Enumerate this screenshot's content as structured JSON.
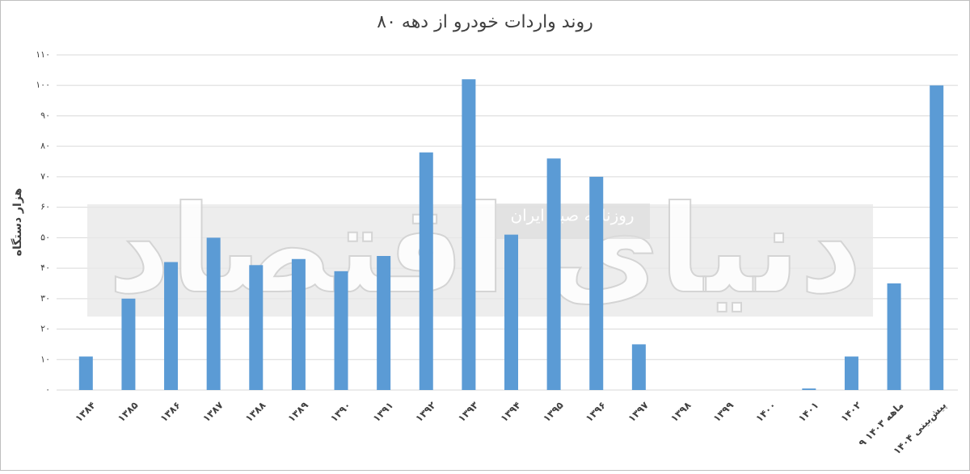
{
  "chart_data": {
    "type": "bar",
    "title": "روند واردات خودرو از دهه ۸۰",
    "y_label": "هزار دستگاه",
    "watermark": "دنیای اقتصاد",
    "watermark_subtitle": "روزنامه صبح ایران",
    "categories": [
      "۱۳۸۴",
      "۱۳۸۵",
      "۱۳۸۶",
      "۱۳۸۷",
      "۱۳۸۸",
      "۱۳۸۹",
      "۱۳۹۰",
      "۱۳۹۱",
      "۱۳۹۲",
      "۱۳۹۳",
      "۱۳۹۴",
      "۱۳۹۵",
      "۱۳۹۶",
      "۱۳۹۷",
      "۱۳۹۸",
      "۱۳۹۹",
      "۱۴۰۰",
      "۱۴۰۱",
      "۱۴۰۲",
      "۹ ماهه ۱۴۰۳",
      "پیش‌بینی ۱۴۰۴"
    ],
    "values": [
      11,
      30,
      42,
      50,
      41,
      43,
      39,
      44,
      78,
      102,
      51,
      76,
      70,
      15,
      0,
      0,
      0,
      0.5,
      11,
      35,
      100
    ],
    "color": "#5b9bd5",
    "ylim": [
      0,
      110
    ],
    "yticks": [
      {
        "value": 0,
        "label": "۰"
      },
      {
        "value": 10,
        "label": "۱۰"
      },
      {
        "value": 20,
        "label": "۲۰"
      },
      {
        "value": 30,
        "label": "۳۰"
      },
      {
        "value": 40,
        "label": "۴۰"
      },
      {
        "value": 50,
        "label": "۵۰"
      },
      {
        "value": 60,
        "label": "۶۰"
      },
      {
        "value": 70,
        "label": "۷۰"
      },
      {
        "value": 80,
        "label": "۸۰"
      },
      {
        "value": 90,
        "label": "۹۰"
      },
      {
        "value": 100,
        "label": "۱۰۰"
      },
      {
        "value": 110,
        "label": "۱۱۰"
      }
    ],
    "grid": true
  }
}
